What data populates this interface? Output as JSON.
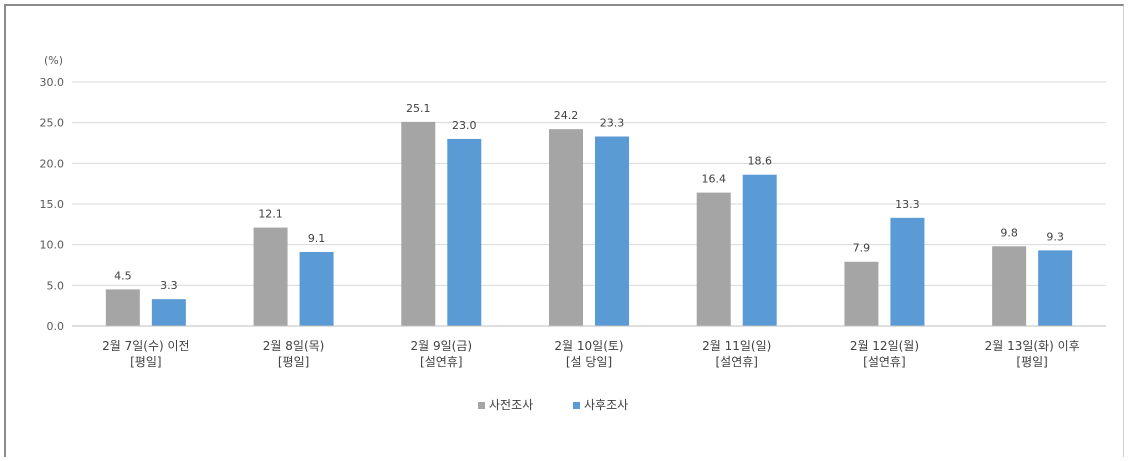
{
  "chart_data": {
    "type": "bar",
    "unit_label": "(%)",
    "categories": [
      [
        "2월 7일(수) 이전",
        "[평일]"
      ],
      [
        "2월 8일(목)",
        "[평일]"
      ],
      [
        "2월 9일(금)",
        "[설연휴]"
      ],
      [
        "2월 10일(토)",
        "[설 당일]"
      ],
      [
        "2월 11일(일)",
        "[설연휴]"
      ],
      [
        "2월 12일(월)",
        "[설연휴]"
      ],
      [
        "2월 13일(화) 이후",
        "[평일]"
      ]
    ],
    "series": [
      {
        "name": "사전조사",
        "color": "#a5a5a5",
        "values": [
          4.5,
          12.1,
          25.1,
          24.2,
          16.4,
          7.9,
          9.8
        ],
        "labels": [
          "4.5",
          "12.1",
          "25.1",
          "24.2",
          "16.4",
          "7.9",
          "9.8"
        ]
      },
      {
        "name": "사후조사",
        "color": "#5b9bd5",
        "values": [
          3.3,
          9.1,
          23.0,
          23.3,
          18.6,
          13.3,
          9.3
        ],
        "labels": [
          "3.3",
          "9.1",
          "23.0",
          "23.3",
          "18.6",
          "13.3",
          "9.3"
        ]
      }
    ],
    "ylim": [
      0,
      30
    ],
    "yticks": [
      "0.0",
      "5.0",
      "10.0",
      "15.0",
      "20.0",
      "25.0",
      "30.0"
    ],
    "grid": true,
    "legend_position": "bottom"
  }
}
